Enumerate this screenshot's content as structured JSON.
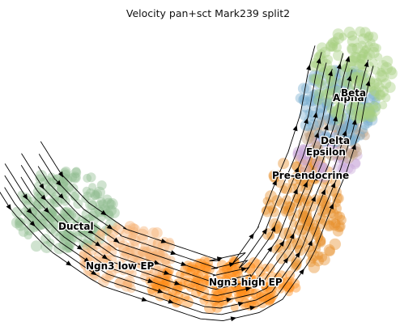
{
  "chart_data": {
    "type": "scatter",
    "title": "Velocity pan+sct Mark239 split2",
    "xlabel": "",
    "ylabel": "",
    "axes_visible": false,
    "legend": "on data",
    "overlay": "velocity streamlines with arrowheads",
    "clusters": [
      {
        "name": "Ductal",
        "color": "#8fbc8f"
      },
      {
        "name": "Ngn3 low EP",
        "color": "#f5b073"
      },
      {
        "name": "Ngn3 high EP",
        "color": "#ff8c1a"
      },
      {
        "name": "Pre-endocrine",
        "color": "#e8902a"
      },
      {
        "name": "Epsilon",
        "color": "#c8a8d8"
      },
      {
        "name": "Delta",
        "color": "#bfa080"
      },
      {
        "name": "Alpha",
        "color": "#a8d080"
      },
      {
        "name": "Beta",
        "color": "#7aaed0"
      }
    ],
    "labels": [
      {
        "text": "Ductal"
      },
      {
        "text": "Ngn3 low EP"
      },
      {
        "text": "Ngn3 high EP"
      },
      {
        "text": "Pre-endocrine"
      },
      {
        "text": "Epsilon"
      },
      {
        "text": "Delta"
      },
      {
        "text": "Alpha"
      },
      {
        "text": "Beta"
      }
    ]
  }
}
